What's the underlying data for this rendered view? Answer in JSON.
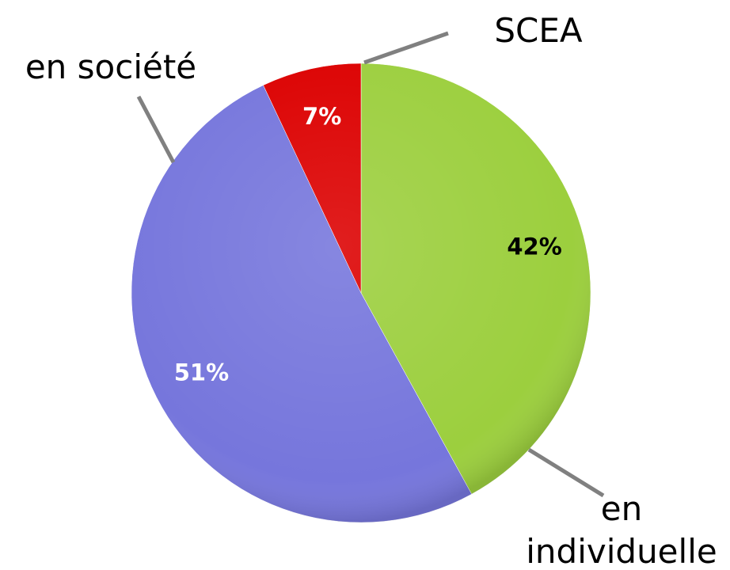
{
  "chart_data": {
    "type": "pie",
    "categories": [
      "en individuelle",
      "en société",
      "SCEA"
    ],
    "values": [
      42,
      51,
      7
    ],
    "value_labels": [
      "42%",
      "51%",
      "7%"
    ],
    "colors": [
      "#9ccf3e",
      "#7676dc",
      "#dc0000"
    ],
    "label_colors": [
      "#000000",
      "#ffffff",
      "#ffffff"
    ]
  }
}
